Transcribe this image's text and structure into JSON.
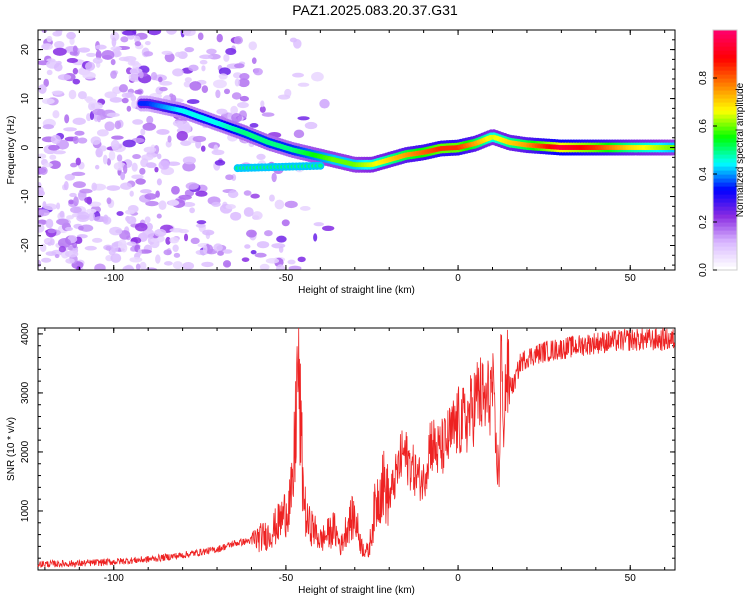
{
  "title": "PAZ1.2025.083.20.37.G31",
  "chart_data": [
    {
      "type": "heatmap",
      "xlabel": "Height of straight line (km)",
      "ylabel": "Frequency (Hz)",
      "xlim": [
        -122,
        63
      ],
      "ylim": [
        -25,
        24
      ],
      "xticks": [
        -100,
        -50,
        0,
        50
      ],
      "yticks": [
        -20,
        -10,
        0,
        10,
        20
      ],
      "colorbar": {
        "label": "Normalized spectral amplitude",
        "range": [
          0,
          1
        ],
        "ticks": [
          "0.0",
          "0.2",
          "0.4",
          "0.6",
          "0.8"
        ],
        "colormap": [
          "#ffffff",
          "#d9b8ff",
          "#8a2be2",
          "#0000ff",
          "#00ffff",
          "#00ff00",
          "#ffff00",
          "#ff8000",
          "#ff0000",
          "#ff0066"
        ]
      },
      "ridge": {
        "x": [
          -90,
          -80,
          -70,
          -62,
          -55,
          -48,
          -42,
          -36,
          -30,
          -25,
          -20,
          -15,
          -10,
          -5,
          0,
          5,
          10,
          15,
          20,
          30,
          40,
          50,
          63
        ],
        "y": [
          9,
          7.5,
          5,
          3,
          1,
          -0.5,
          -1.5,
          -2.5,
          -3.5,
          -3.5,
          -2.5,
          -1.5,
          -1,
          -0.2,
          0,
          0.8,
          2.2,
          1,
          0.5,
          0,
          0,
          0,
          0
        ],
        "amplitude": [
          0.35,
          0.45,
          0.45,
          0.5,
          0.5,
          0.5,
          0.55,
          0.6,
          0.6,
          0.65,
          0.7,
          0.75,
          0.8,
          0.85,
          0.85,
          0.75,
          0.65,
          0.7,
          0.75,
          0.95,
          0.85,
          0.7,
          0.6
        ]
      }
    },
    {
      "type": "line",
      "xlabel": "Height of straight line (km)",
      "ylabel": "SNR (10 * v/v)",
      "xlim": [
        -122,
        63
      ],
      "ylim": [
        0,
        4100
      ],
      "xticks": [
        -100,
        -50,
        0,
        50
      ],
      "yticks": [
        1000,
        2000,
        3000,
        4000
      ],
      "color": "#ee2222",
      "series": [
        {
          "x": [
            -122,
            -110,
            -100,
            -90,
            -80,
            -70,
            -65,
            -60,
            -55,
            -52,
            -50,
            -48,
            -46.5,
            -45,
            -44,
            -42,
            -40,
            -38,
            -36,
            -34,
            -32,
            -30,
            -28,
            -26,
            -24,
            -22,
            -20,
            -18,
            -16,
            -14,
            -12,
            -10,
            -8,
            -6,
            -4,
            -2,
            0,
            2,
            4,
            6,
            8,
            10,
            11,
            12,
            12.5,
            13,
            14,
            16,
            18,
            20,
            25,
            30,
            35,
            40,
            50,
            63
          ],
          "y": [
            100,
            110,
            140,
            180,
            250,
            350,
            450,
            500,
            600,
            800,
            1000,
            1300,
            3500,
            1400,
            800,
            700,
            500,
            600,
            700,
            400,
            800,
            900,
            400,
            300,
            1100,
            1500,
            1200,
            1600,
            2000,
            1800,
            1600,
            1500,
            2200,
            2000,
            2100,
            2300,
            2500,
            2500,
            2700,
            3000,
            2800,
            3100,
            2000,
            1600,
            4000,
            2400,
            3300,
            3100,
            3500,
            3600,
            3700,
            3750,
            3800,
            3850,
            3900,
            3900
          ]
        }
      ]
    }
  ]
}
